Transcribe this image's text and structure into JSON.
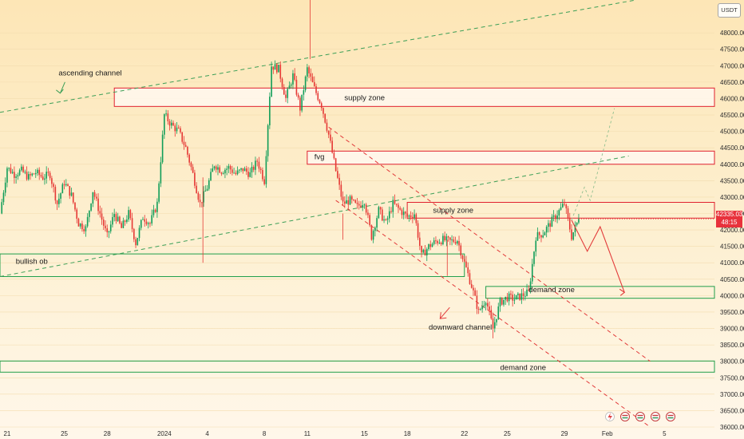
{
  "currency_label": "USDT",
  "price_badge": {
    "price": "42335.03",
    "countdown": "48:15"
  },
  "colors": {
    "bull": "#0f9d58",
    "bear": "#e53935",
    "supply": "#e0202e",
    "demand": "#1f9e4a",
    "channel_up": "#3c9f57",
    "channel_down": "#e23a3a",
    "projection": "#e23a3a",
    "projection_up": "#8fbf8f"
  },
  "chart_data": {
    "type": "candlestick",
    "ylim": [
      36000,
      49000
    ],
    "y_ticks": [
      36000,
      36500,
      37000,
      37500,
      38000,
      38500,
      39000,
      39500,
      40000,
      40500,
      41000,
      41500,
      42000,
      42500,
      43000,
      43500,
      44000,
      44500,
      45000,
      45500,
      46000,
      46500,
      47000,
      47500,
      48000
    ],
    "y_tick_labels": [
      "36000.00",
      "36500.00",
      "37000.00",
      "37500.00",
      "38000.00",
      "38500.00",
      "39000.00",
      "39500.00",
      "40000.00",
      "40500.00",
      "41000.00",
      "41500.00",
      "42000.00",
      "42500.00",
      "43000.00",
      "43500.00",
      "44000.00",
      "44500.00",
      "45000.00",
      "45500.00",
      "46000.00",
      "46500.00",
      "47000.00",
      "47500.00",
      "48000.00"
    ],
    "x_day_range": [
      -11.5,
      38.5
    ],
    "x_ticks": [
      {
        "day": -11,
        "label": "21"
      },
      {
        "day": -7,
        "label": "25"
      },
      {
        "day": -4,
        "label": "28"
      },
      {
        "day": 0,
        "label": "2024"
      },
      {
        "day": 3,
        "label": "4"
      },
      {
        "day": 7,
        "label": "8"
      },
      {
        "day": 10,
        "label": "11"
      },
      {
        "day": 14,
        "label": "15"
      },
      {
        "day": 17,
        "label": "18"
      },
      {
        "day": 21,
        "label": "22"
      },
      {
        "day": 24,
        "label": "25"
      },
      {
        "day": 28,
        "label": "29"
      },
      {
        "day": 31,
        "label": "Feb"
      },
      {
        "day": 35,
        "label": "5"
      }
    ],
    "close_path": [
      [
        -11.5,
        42500
      ],
      [
        -11.0,
        43900
      ],
      [
        -10.5,
        43700
      ],
      [
        -10.0,
        43800
      ],
      [
        -9.5,
        43600
      ],
      [
        -9.0,
        43750
      ],
      [
        -8.5,
        43600
      ],
      [
        -8.0,
        43700
      ],
      [
        -7.5,
        42800
      ],
      [
        -7.0,
        43450
      ],
      [
        -6.5,
        43050
      ],
      [
        -6.0,
        42200
      ],
      [
        -5.5,
        42050
      ],
      [
        -5.0,
        43200
      ],
      [
        -4.5,
        42500
      ],
      [
        -4.0,
        41800
      ],
      [
        -3.5,
        42500
      ],
      [
        -3.0,
        42050
      ],
      [
        -2.5,
        42500
      ],
      [
        -2.0,
        41600
      ],
      [
        -1.5,
        42400
      ],
      [
        -1.0,
        42200
      ],
      [
        -0.5,
        42800
      ],
      [
        0.0,
        45500
      ],
      [
        0.5,
        45200
      ],
      [
        1.0,
        45000
      ],
      [
        1.5,
        44500
      ],
      [
        2.0,
        43700
      ],
      [
        2.5,
        42800
      ],
      [
        3.0,
        43300
      ],
      [
        3.5,
        44000
      ],
      [
        4.0,
        43800
      ],
      [
        4.5,
        43900
      ],
      [
        5.0,
        43700
      ],
      [
        5.5,
        43850
      ],
      [
        6.0,
        43700
      ],
      [
        6.5,
        44100
      ],
      [
        7.0,
        43500
      ],
      [
        7.5,
        47000
      ],
      [
        8.0,
        46900
      ],
      [
        8.5,
        46000
      ],
      [
        9.0,
        46700
      ],
      [
        9.5,
        45700
      ],
      [
        10.0,
        46900
      ],
      [
        10.5,
        46300
      ],
      [
        11.0,
        45800
      ],
      [
        11.5,
        44900
      ],
      [
        12.0,
        43800
      ],
      [
        12.5,
        42800
      ],
      [
        13.0,
        42900
      ],
      [
        13.5,
        42700
      ],
      [
        14.0,
        42900
      ],
      [
        14.5,
        41800
      ],
      [
        15.0,
        42600
      ],
      [
        15.5,
        42200
      ],
      [
        16.0,
        42800
      ],
      [
        16.5,
        42600
      ],
      [
        17.0,
        42400
      ],
      [
        17.5,
        42500
      ],
      [
        18.0,
        41200
      ],
      [
        18.5,
        41500
      ],
      [
        19.0,
        41650
      ],
      [
        19.5,
        41700
      ],
      [
        20.0,
        41650
      ],
      [
        20.5,
        41700
      ],
      [
        21.0,
        41000
      ],
      [
        21.5,
        40300
      ],
      [
        22.0,
        39500
      ],
      [
        22.5,
        39900
      ],
      [
        23.0,
        39000
      ],
      [
        23.5,
        39800
      ],
      [
        24.0,
        39950
      ],
      [
        24.5,
        39900
      ],
      [
        25.0,
        40000
      ],
      [
        25.5,
        40100
      ],
      [
        26.0,
        41800
      ],
      [
        26.5,
        41900
      ],
      [
        27.0,
        42200
      ],
      [
        27.5,
        42500
      ],
      [
        28.0,
        42800
      ],
      [
        28.5,
        41800
      ],
      [
        29.0,
        42335
      ]
    ],
    "zones": [
      {
        "label": "supply zone",
        "from_day": -3.5,
        "to_day": 38.5,
        "low": 45760,
        "high": 46320,
        "kind": "supply",
        "filled": true
      },
      {
        "label": "fvg",
        "from_day": 10,
        "to_day": 38.5,
        "low": 44000,
        "high": 44400,
        "kind": "supply",
        "filled": true
      },
      {
        "label": "supply zone",
        "from_day": 17,
        "to_day": 38.5,
        "low": 42360,
        "high": 42840,
        "kind": "supply",
        "filled": false
      },
      {
        "label": "bullish ob",
        "from_day": -11.5,
        "to_day": 21,
        "low": 40580,
        "high": 41270,
        "kind": "demand",
        "filled": false
      },
      {
        "label": "demand zone",
        "from_day": 22.5,
        "to_day": 38.5,
        "low": 39920,
        "high": 40280,
        "kind": "demand",
        "filled": false
      },
      {
        "label": "demand zone",
        "from_day": -11.5,
        "to_day": 38.5,
        "low": 37670,
        "high": 38010,
        "kind": "demand",
        "filled": false
      }
    ],
    "annotations": [
      {
        "text": "ascending channel",
        "day": -7.4,
        "price": 46700
      },
      {
        "text": "supply zone",
        "day": 12.6,
        "price": 45950
      },
      {
        "text": "fvg",
        "day": 10.5,
        "price": 44150
      },
      {
        "text": "supply zone",
        "day": 18.8,
        "price": 42520
      },
      {
        "text": "bullish ob",
        "day": -10.4,
        "price": 40970
      },
      {
        "text": "demand zone",
        "day": 25.5,
        "price": 40110
      },
      {
        "text": "downward channel",
        "day": 18.5,
        "price": 38970
      },
      {
        "text": "demand zone",
        "day": 23.5,
        "price": 37740
      }
    ],
    "channel_lines": [
      {
        "kind": "up",
        "points": [
          [
            -11.5,
            45580
          ],
          [
            33,
            49000
          ]
        ]
      },
      {
        "kind": "up",
        "points": [
          [
            -11.5,
            40580
          ],
          [
            32.5,
            44250
          ]
        ]
      },
      {
        "kind": "down",
        "points": [
          [
            11.5,
            45130
          ],
          [
            34,
            38000
          ]
        ]
      },
      {
        "kind": "down",
        "points": [
          [
            12,
            42900
          ],
          [
            34,
            36000
          ]
        ]
      }
    ],
    "projection": [
      [
        28.5,
        42300
      ],
      [
        29.6,
        41350
      ],
      [
        30.5,
        42100
      ],
      [
        32.2,
        40100
      ]
    ],
    "projection_up": [
      [
        28.5,
        42300
      ],
      [
        29.4,
        43300
      ],
      [
        29.8,
        42900
      ],
      [
        31.5,
        45700
      ]
    ]
  }
}
